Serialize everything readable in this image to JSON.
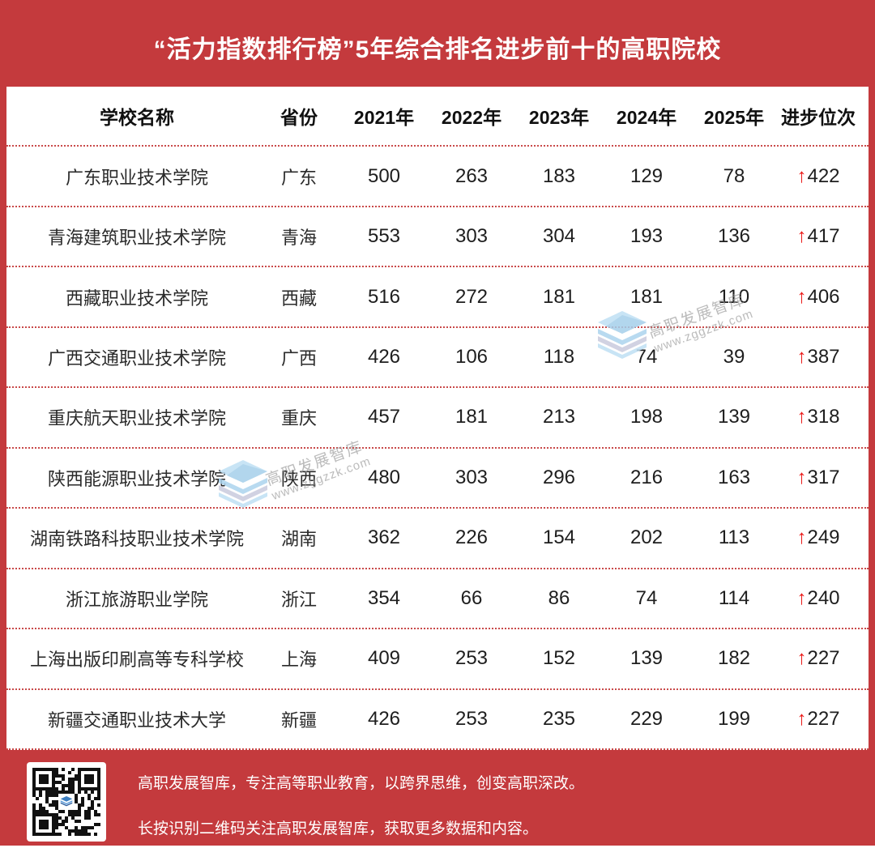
{
  "page": {
    "title": "“活力指数排行榜”5年综合排名进步前十的高职院校",
    "background_red": "#C43A3D",
    "dotted_line_red": "#C94A4A",
    "arrow_red": "#EA1917"
  },
  "table": {
    "headers": [
      "学校名称",
      "省份",
      "2021年",
      "2022年",
      "2023年",
      "2024年",
      "2025年",
      "进步位次"
    ],
    "progress_arrow": "↑",
    "rows": [
      {
        "school": "广东职业技术学院",
        "province": "广东",
        "values": [
          "500",
          "263",
          "183",
          "129",
          "78"
        ],
        "progress": "422"
      },
      {
        "school": "青海建筑职业技术学院",
        "province": "青海",
        "values": [
          "553",
          "303",
          "304",
          "193",
          "136"
        ],
        "progress": "417"
      },
      {
        "school": "西藏职业技术学院",
        "province": "西藏",
        "values": [
          "516",
          "272",
          "181",
          "181",
          "110"
        ],
        "progress": "406"
      },
      {
        "school": "广西交通职业技术学院",
        "province": "广西",
        "values": [
          "426",
          "106",
          "118",
          "74",
          "39"
        ],
        "progress": "387"
      },
      {
        "school": "重庆航天职业技术学院",
        "province": "重庆",
        "values": [
          "457",
          "181",
          "213",
          "198",
          "139"
        ],
        "progress": "318"
      },
      {
        "school": "陕西能源职业技术学院",
        "province": "陕西",
        "values": [
          "480",
          "303",
          "296",
          "216",
          "163"
        ],
        "progress": "317"
      },
      {
        "school": "湖南铁路科技职业技术学院",
        "province": "湖南",
        "values": [
          "362",
          "226",
          "154",
          "202",
          "113"
        ],
        "progress": "249"
      },
      {
        "school": "浙江旅游职业学院",
        "province": "浙江",
        "values": [
          "354",
          "66",
          "86",
          "74",
          "114"
        ],
        "progress": "240"
      },
      {
        "school": "上海出版印刷高等专科学校",
        "province": "上海",
        "values": [
          "409",
          "253",
          "152",
          "139",
          "182"
        ],
        "progress": "227"
      },
      {
        "school": "新疆交通职业技术大学",
        "province": "新疆",
        "values": [
          "426",
          "253",
          "235",
          "229",
          "199"
        ],
        "progress": "227"
      }
    ]
  },
  "watermark": {
    "brand": "高职发展智库",
    "site": "www.zggzzk.com",
    "logo_icon": "stacked-layers-icon"
  },
  "footer": {
    "line1": "高职发展智库，专注高等职业教育，以跨界思维，创变高职深改。",
    "line2": "长按识别二维码关注高职发展智库，获取更多数据和内容。",
    "qr": "qr-code"
  }
}
